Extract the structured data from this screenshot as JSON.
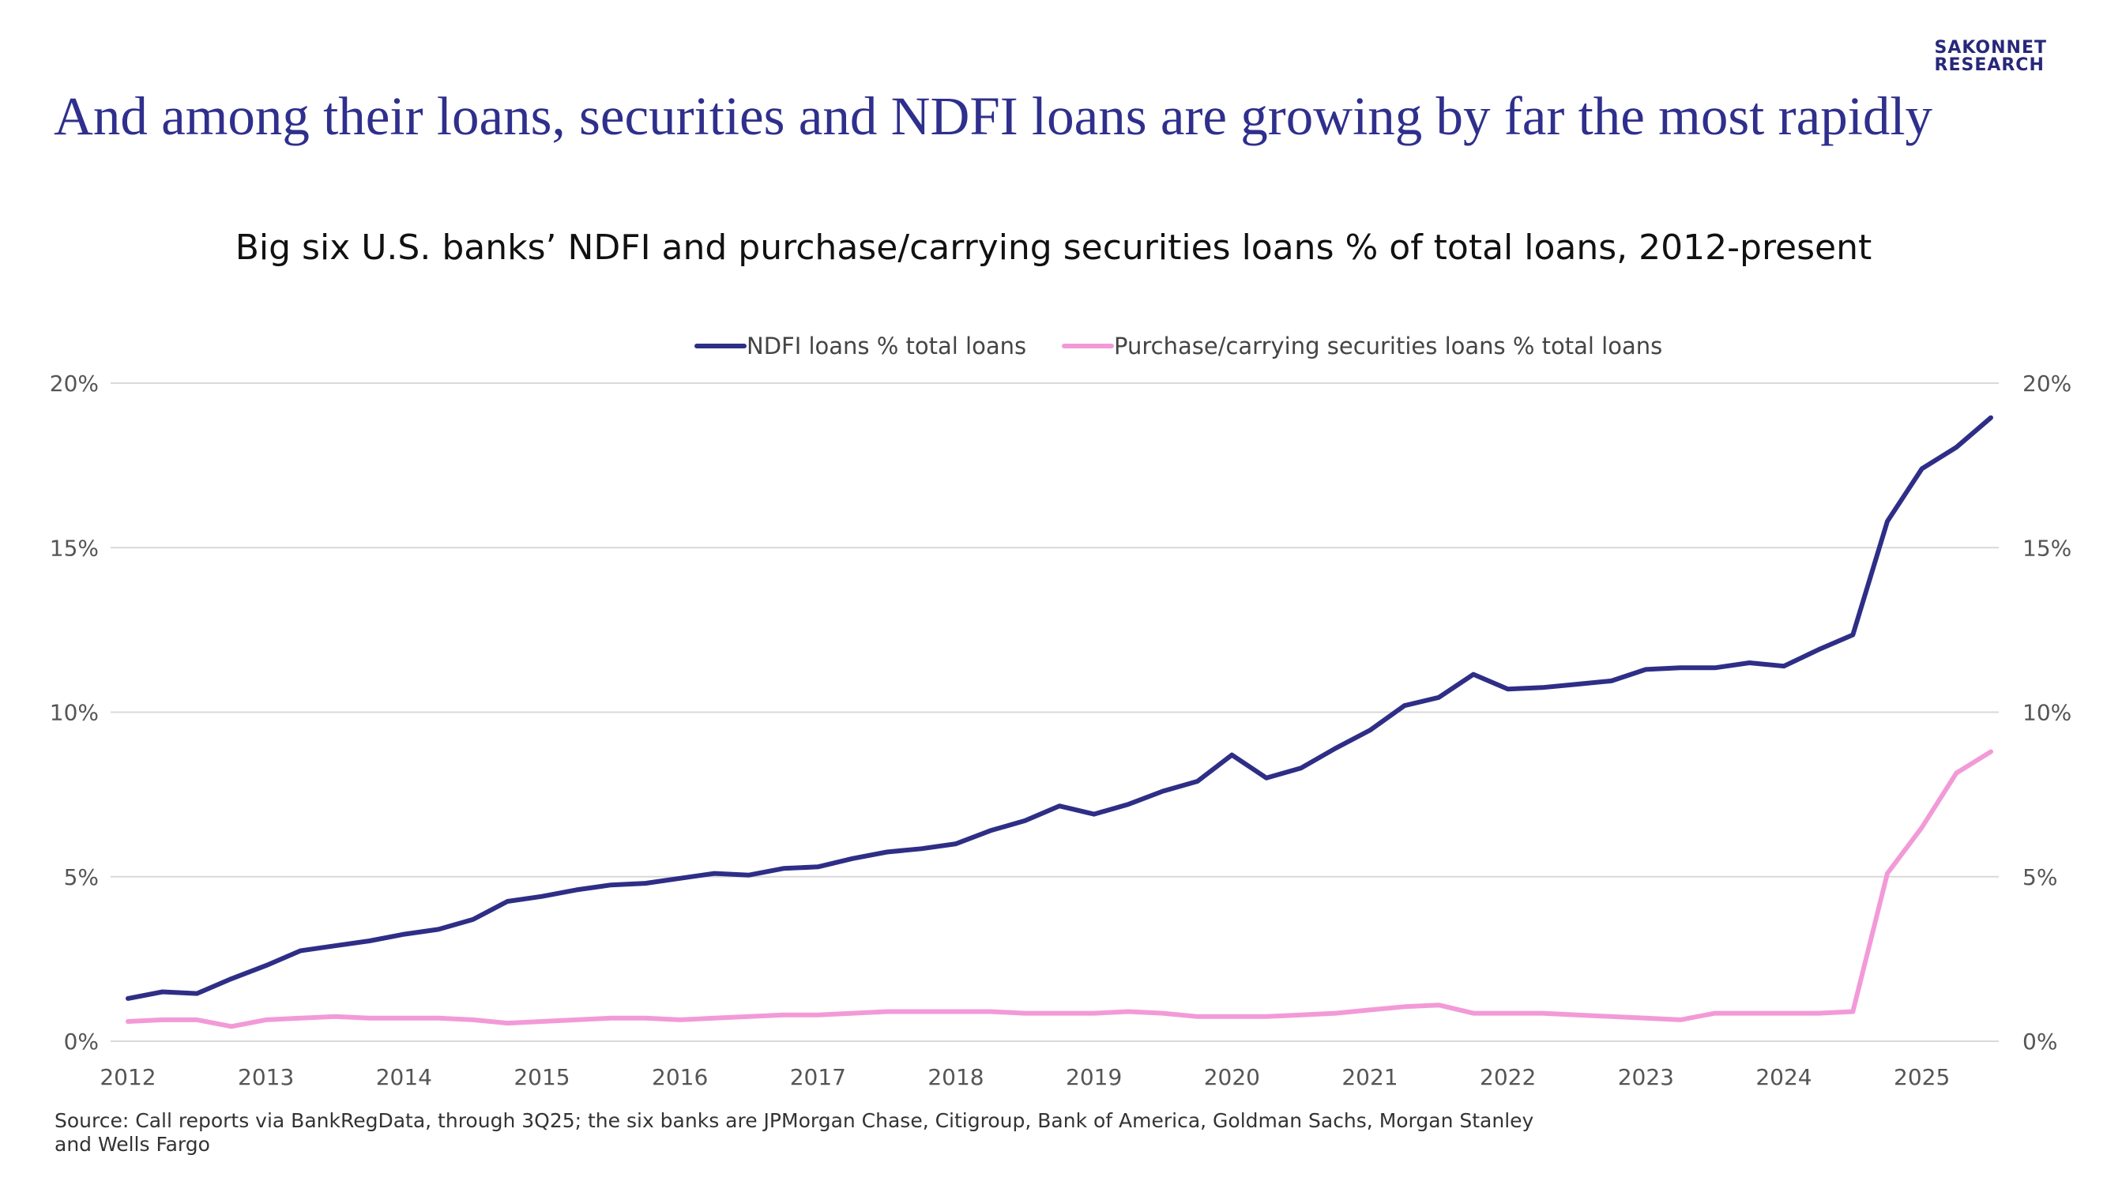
{
  "brand": {
    "line1": "SAKONNET",
    "line2": "RESEARCH"
  },
  "headline": "And among their loans, securities and NDFI loans are growing by far the most rapidly",
  "source": "Source: Call reports via BankRegData, through 3Q25; the six banks are JPMorgan Chase, Citigroup, Bank of America, Goldman Sachs, Morgan Stanley and Wells Fargo",
  "colors": {
    "ndfi": "#2e2e87",
    "securities": "#f29ad8",
    "grid": "#d9d9d9",
    "headline": "#2f2f8d"
  },
  "chart_data": {
    "type": "line",
    "title": "Big six U.S. banks’ NDFI and purchase/carrying securities loans % of total loans, 2012-present",
    "legend_position": "top-center",
    "grid": true,
    "x_tick_labels": [
      "2012",
      "2013",
      "2014",
      "2015",
      "2016",
      "2017",
      "2018",
      "2019",
      "2020",
      "2021",
      "2022",
      "2023",
      "2024",
      "2025"
    ],
    "y_tick_labels_left": [
      "0%",
      "5%",
      "10%",
      "15%",
      "20%"
    ],
    "y_tick_labels_right": [
      "0%",
      "5%",
      "10%",
      "15%",
      "20%"
    ],
    "ylim": [
      0,
      20
    ],
    "series": [
      {
        "name": "NDFI loans % total loans",
        "color": "#2e2e87",
        "x": [
          2012.0,
          2012.25,
          2012.5,
          2012.75,
          2013.0,
          2013.25,
          2013.5,
          2013.75,
          2014.0,
          2014.25,
          2014.5,
          2014.75,
          2015.0,
          2015.25,
          2015.5,
          2015.75,
          2016.0,
          2016.25,
          2016.5,
          2016.75,
          2017.0,
          2017.25,
          2017.5,
          2017.75,
          2018.0,
          2018.25,
          2018.5,
          2018.75,
          2019.0,
          2019.25,
          2019.5,
          2019.75,
          2020.0,
          2020.25,
          2020.5,
          2020.75,
          2021.0,
          2021.25,
          2021.5,
          2021.75,
          2022.0,
          2022.25,
          2022.5,
          2022.75,
          2023.0,
          2023.25,
          2023.5,
          2023.75,
          2024.0,
          2024.25,
          2024.5,
          2024.75,
          2025.0,
          2025.25,
          2025.5
        ],
        "values": [
          1.3,
          1.5,
          1.45,
          1.9,
          2.3,
          2.75,
          2.9,
          3.05,
          3.25,
          3.4,
          3.7,
          4.25,
          4.4,
          4.6,
          4.75,
          4.8,
          4.95,
          5.1,
          5.05,
          5.25,
          5.3,
          5.55,
          5.75,
          5.85,
          6.0,
          6.4,
          6.7,
          7.15,
          6.9,
          7.2,
          7.6,
          7.9,
          8.7,
          8.0,
          8.3,
          8.9,
          9.45,
          10.2,
          10.45,
          11.15,
          10.7,
          10.75,
          10.85,
          10.95,
          11.3,
          11.35,
          11.35,
          11.5,
          11.4,
          11.9,
          12.35,
          15.8,
          17.4,
          18.05,
          18.95
        ]
      },
      {
        "name": "Purchase/carrying securities loans % total loans",
        "color": "#f29ad8",
        "x": [
          2012.0,
          2012.25,
          2012.5,
          2012.75,
          2013.0,
          2013.25,
          2013.5,
          2013.75,
          2014.0,
          2014.25,
          2014.5,
          2014.75,
          2015.0,
          2015.25,
          2015.5,
          2015.75,
          2016.0,
          2016.25,
          2016.5,
          2016.75,
          2017.0,
          2017.25,
          2017.5,
          2017.75,
          2018.0,
          2018.25,
          2018.5,
          2018.75,
          2019.0,
          2019.25,
          2019.5,
          2019.75,
          2020.0,
          2020.25,
          2020.5,
          2020.75,
          2021.0,
          2021.25,
          2021.5,
          2021.75,
          2022.0,
          2022.25,
          2022.5,
          2022.75,
          2023.0,
          2023.25,
          2023.5,
          2023.75,
          2024.0,
          2024.25,
          2024.5,
          2024.75,
          2025.0,
          2025.25,
          2025.5
        ],
        "values": [
          0.6,
          0.65,
          0.65,
          0.45,
          0.65,
          0.7,
          0.75,
          0.7,
          0.7,
          0.7,
          0.65,
          0.55,
          0.6,
          0.65,
          0.7,
          0.7,
          0.65,
          0.7,
          0.75,
          0.8,
          0.8,
          0.85,
          0.9,
          0.9,
          0.9,
          0.9,
          0.85,
          0.85,
          0.85,
          0.9,
          0.85,
          0.75,
          0.75,
          0.75,
          0.8,
          0.85,
          0.95,
          1.05,
          1.1,
          0.85,
          0.85,
          0.85,
          0.8,
          0.75,
          0.7,
          0.65,
          0.85,
          0.85,
          0.85,
          0.85,
          0.9,
          5.1,
          6.5,
          8.15,
          8.8
        ]
      }
    ]
  }
}
